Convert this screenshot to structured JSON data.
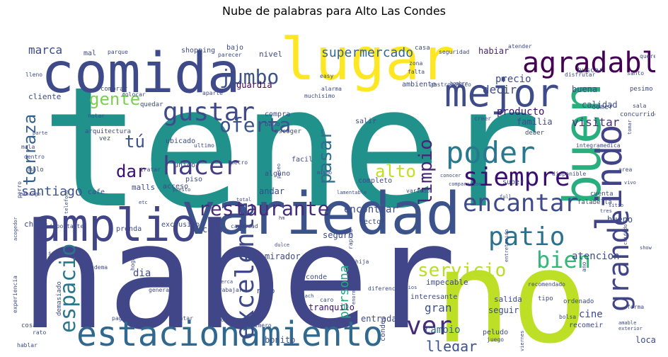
{
  "chart_data": {
    "type": "wordcloud",
    "title": "Nube de palabras para Alto Las Condes",
    "colormap": "viridis",
    "background": "#ffffff",
    "words": [
      {
        "text": "tener",
        "weight": 1.0,
        "color": "#21918c"
      },
      {
        "text": "haber",
        "weight": 0.92,
        "color": "#404688"
      },
      {
        "text": "no",
        "weight": 0.85,
        "color": "#bddf26"
      },
      {
        "text": "lugar",
        "weight": 0.62,
        "color": "#fde725"
      },
      {
        "text": "variedad",
        "weight": 0.6,
        "color": "#3b528b"
      },
      {
        "text": "comida",
        "weight": 0.56,
        "color": "#3e4a89"
      },
      {
        "text": "buen",
        "weight": 0.55,
        "color": "#29af7f"
      },
      {
        "text": "amplio",
        "weight": 0.48,
        "color": "#414487"
      },
      {
        "text": "estacionamiento",
        "weight": 0.46,
        "color": "#31688e"
      },
      {
        "text": "mejor",
        "weight": 0.4,
        "color": "#3e4c8a"
      },
      {
        "text": "lindo",
        "weight": 0.38,
        "color": "#404387"
      },
      {
        "text": "agradable",
        "weight": 0.32,
        "color": "#440154"
      },
      {
        "text": "poder",
        "weight": 0.3,
        "color": "#2a788e"
      },
      {
        "text": "grande",
        "weight": 0.3,
        "color": "#414487"
      },
      {
        "text": "excelente",
        "weight": 0.29,
        "color": "#3e4989"
      },
      {
        "text": "patio",
        "weight": 0.29,
        "color": "#2c728e"
      },
      {
        "text": "siempre",
        "weight": 0.28,
        "color": "#3b0f70"
      },
      {
        "text": "hacer",
        "weight": 0.27,
        "color": "#433e85"
      },
      {
        "text": "gustar",
        "weight": 0.26,
        "color": "#3e4a89"
      },
      {
        "text": "ver",
        "weight": 0.26,
        "color": "#472c7a"
      },
      {
        "text": "encantar",
        "weight": 0.25,
        "color": "#3e4a89"
      },
      {
        "text": "restaurante",
        "weight": 0.24,
        "color": "#472c7a"
      },
      {
        "text": "bien",
        "weight": 0.24,
        "color": "#35b779"
      },
      {
        "text": "espacio",
        "weight": 0.24,
        "color": "#2a768e"
      },
      {
        "text": "oferta",
        "weight": 0.23,
        "color": "#3b528b"
      },
      {
        "text": "jumbo",
        "weight": 0.22,
        "color": "#3b528b"
      },
      {
        "text": "gente",
        "weight": 0.21,
        "color": "#7ad151"
      },
      {
        "text": "pasar",
        "weight": 0.21,
        "color": "#2e6f8e"
      },
      {
        "text": "limpio",
        "weight": 0.21,
        "color": "#482677"
      },
      {
        "text": "terraza",
        "weight": 0.21,
        "color": "#355f8d"
      },
      {
        "text": "alto",
        "weight": 0.2,
        "color": "#c2df23"
      },
      {
        "text": "servicio",
        "weight": 0.2,
        "color": "#b8de29"
      },
      {
        "text": "dar",
        "weight": 0.19,
        "color": "#3b0f70"
      },
      {
        "text": "tú",
        "weight": 0.18,
        "color": "#3b528b"
      },
      {
        "text": "llegar",
        "weight": 0.16,
        "color": "#3b528b"
      },
      {
        "text": "supermercado",
        "weight": 0.14,
        "color": "#31688e"
      },
      {
        "text": "persona",
        "weight": 0.14,
        "color": "#22a884"
      },
      {
        "text": "santiago",
        "weight": 0.12,
        "color": "#3b528b"
      },
      {
        "text": "visitar",
        "weight": 0.12,
        "color": "#472c7a"
      },
      {
        "text": "decir",
        "weight": 0.12,
        "color": "#3e4a89"
      },
      {
        "text": "cine",
        "weight": 0.11,
        "color": "#3e4a89"
      },
      {
        "text": "atencion",
        "weight": 0.11,
        "color": "#3e4989"
      },
      {
        "text": "gran",
        "weight": 0.11,
        "color": "#3b528b"
      },
      {
        "text": "marca",
        "weight": 0.1,
        "color": "#3e4a89"
      },
      {
        "text": "habiar",
        "weight": 0.1,
        "color": "#482777"
      },
      {
        "text": "buena",
        "weight": 0.1,
        "color": "#3e4a89"
      },
      {
        "text": "precio",
        "weight": 0.1,
        "color": "#3e4a89"
      },
      {
        "text": "cambio",
        "weight": 0.1,
        "color": "#31688e"
      },
      {
        "text": "encontrar",
        "weight": 0.1,
        "color": "#3e4a89"
      },
      {
        "text": "tranquilo",
        "weight": 0.1,
        "color": "#3b0f70"
      },
      {
        "text": "guardia",
        "weight": 0.09,
        "color": "#440154"
      },
      {
        "text": "producto",
        "weight": 0.09,
        "color": "#3b0f70"
      },
      {
        "text": "calidad",
        "weight": 0.09,
        "color": "#3b528b"
      },
      {
        "text": "mirador",
        "weight": 0.09,
        "color": "#3e4a89"
      },
      {
        "text": "bonito",
        "weight": 0.09,
        "color": "#3b528b"
      },
      {
        "text": "seguir",
        "weight": 0.09,
        "color": "#3e4a89"
      },
      {
        "text": "familia",
        "weight": 0.09,
        "color": "#3e4a89"
      },
      {
        "text": "bueno",
        "weight": 0.09,
        "color": "#3e4a89"
      },
      {
        "text": "local",
        "weight": 0.09,
        "color": "#3e4a89"
      },
      {
        "text": "entrada",
        "weight": 0.09,
        "color": "#3e4a89"
      },
      {
        "text": "caja",
        "weight": 0.09,
        "color": "#3e4a89"
      },
      {
        "text": "seguro",
        "weight": 0.09,
        "color": "#3e4a89"
      },
      {
        "text": "andar",
        "weight": 0.09,
        "color": "#3e4a89"
      },
      {
        "text": "dia",
        "weight": 0.09,
        "color": "#3e4a89"
      },
      {
        "text": "nivel",
        "weight": 0.08,
        "color": "#3e4a89"
      },
      {
        "text": "bajo",
        "weight": 0.08,
        "color": "#3e4a89"
      },
      {
        "text": "mal",
        "weight": 0.08,
        "color": "#3e4a89"
      },
      {
        "text": "shopping",
        "weight": 0.08,
        "color": "#3e4a89"
      },
      {
        "text": "cliente",
        "weight": 0.08,
        "color": "#3e4a89"
      },
      {
        "text": "chile",
        "weight": 0.08,
        "color": "#3e4a89"
      },
      {
        "text": "malls",
        "weight": 0.08,
        "color": "#3e4a89"
      },
      {
        "text": "salida",
        "weight": 0.08,
        "color": "#3e4a89"
      },
      {
        "text": "rico",
        "weight": 0.08,
        "color": "#3e4a89"
      },
      {
        "text": "conde",
        "weight": 0.08,
        "color": "#3e4a89"
      },
      {
        "text": "condes",
        "weight": 0.08,
        "color": "#3e4a89"
      },
      {
        "text": "nino",
        "weight": 0.08,
        "color": "#3e4a89"
      },
      {
        "text": "impecable",
        "weight": 0.08,
        "color": "#3e4a89"
      },
      {
        "text": "interesante",
        "weight": 0.08,
        "color": "#3e4a89"
      },
      {
        "text": "recomeir",
        "weight": 0.08,
        "color": "#3e4a89"
      },
      {
        "text": "comer",
        "weight": 0.08,
        "color": "#3e4a89"
      },
      {
        "text": "sector",
        "weight": 0.08,
        "color": "#3e4a89"
      },
      {
        "text": "super",
        "weight": 0.08,
        "color": "#3e4a89"
      },
      {
        "text": "completo",
        "weight": 0.08,
        "color": "#3e4a89"
      },
      {
        "text": "alguno",
        "weight": 0.08,
        "color": "#3e4a89"
      },
      {
        "text": "unico",
        "weight": 0.08,
        "color": "#3e4a89"
      },
      {
        "text": "piso",
        "weight": 0.08,
        "color": "#3e4a89"
      },
      {
        "text": "ubicado",
        "weight": 0.08,
        "color": "#3e4a89"
      },
      {
        "text": "facil",
        "weight": 0.08,
        "color": "#3e4a89"
      },
      {
        "text": "compra",
        "weight": 0.08,
        "color": "#3e4a89"
      },
      {
        "text": "bano",
        "weight": 0.08,
        "color": "#3e4a89"
      },
      {
        "text": "escoger",
        "weight": 0.08,
        "color": "#3e4a89"
      },
      {
        "text": "salir",
        "weight": 0.08,
        "color": "#3e4a89"
      },
      {
        "text": "acceso",
        "weight": 0.08,
        "color": "#3e4a89"
      },
      {
        "text": "cafe",
        "weight": 0.08,
        "color": "#3e4a89"
      },
      {
        "text": "exclusivo",
        "weight": 0.08,
        "color": "#3e4a89"
      },
      {
        "text": "prenda",
        "weight": 0.08,
        "color": "#3e4a89"
      },
      {
        "text": "ambiente",
        "weight": 0.07,
        "color": "#3e4a89"
      },
      {
        "text": "casa",
        "weight": 0.07,
        "color": "#3e4a89"
      },
      {
        "text": "seguridad",
        "weight": 0.07,
        "color": "#3e4a89"
      },
      {
        "text": "atender",
        "weight": 0.07,
        "color": "#3e4a89"
      },
      {
        "text": "querer",
        "weight": 0.07,
        "color": "#3e4a89"
      },
      {
        "text": "buscar",
        "weight": 0.07,
        "color": "#3e4a89"
      },
      {
        "text": "santo",
        "weight": 0.07,
        "color": "#3e4a89"
      },
      {
        "text": "disfrutar",
        "weight": 0.07,
        "color": "#3e4a89"
      },
      {
        "text": "hombre",
        "weight": 0.07,
        "color": "#3e4a89"
      },
      {
        "text": "zona",
        "weight": 0.07,
        "color": "#3e4a89"
      },
      {
        "text": "falta",
        "weight": 0.07,
        "color": "#3e4a89"
      },
      {
        "text": "parecer",
        "weight": 0.07,
        "color": "#3e4a89"
      },
      {
        "text": "parque",
        "weight": 0.07,
        "color": "#3e4a89"
      },
      {
        "text": "lleno",
        "weight": 0.07,
        "color": "#3e4a89"
      },
      {
        "text": "easy",
        "weight": 0.07,
        "color": "#3e4a89"
      },
      {
        "text": "alarma",
        "weight": 0.07,
        "color": "#3e4a89"
      },
      {
        "text": "muchisimo",
        "weight": 0.07,
        "color": "#3e4a89"
      },
      {
        "text": "gastronomico",
        "weight": 0.07,
        "color": "#3e4a89"
      },
      {
        "text": "aparte",
        "weight": 0.07,
        "color": "#3e4a89"
      },
      {
        "text": "comprar",
        "weight": 0.07,
        "color": "#3e4a89"
      },
      {
        "text": "colocar",
        "weight": 0.07,
        "color": "#3e4a89"
      },
      {
        "text": "quedar",
        "weight": 0.07,
        "color": "#3e4a89"
      },
      {
        "text": "notar",
        "weight": 0.07,
        "color": "#3e4a89"
      },
      {
        "text": "arquitectura",
        "weight": 0.07,
        "color": "#3e4a89"
      },
      {
        "text": "vez",
        "weight": 0.07,
        "color": "#3e4a89"
      },
      {
        "text": "ultimo",
        "weight": 0.07,
        "color": "#3e4a89"
      },
      {
        "text": "pesimo",
        "weight": 0.07,
        "color": "#3e4a89"
      },
      {
        "text": "concurrido",
        "weight": 0.07,
        "color": "#3e4a89"
      },
      {
        "text": "sala",
        "weight": 0.07,
        "color": "#3e4a89"
      },
      {
        "text": "creer",
        "weight": 0.07,
        "color": "#3e4a89"
      },
      {
        "text": "deber",
        "weight": 0.07,
        "color": "#3e4a89"
      },
      {
        "text": "tomar",
        "weight": 0.07,
        "color": "#3e4a89"
      },
      {
        "text": "integramedica",
        "weight": 0.07,
        "color": "#3e4a89"
      },
      {
        "text": "area",
        "weight": 0.07,
        "color": "#3e4a89"
      },
      {
        "text": "vivo",
        "weight": 0.07,
        "color": "#3e4a89"
      },
      {
        "text": "conocer",
        "weight": 0.07,
        "color": "#3e4a89"
      },
      {
        "text": "comparacion",
        "weight": 0.07,
        "color": "#3e4a89"
      },
      {
        "text": "disponible",
        "weight": 0.07,
        "color": "#3e4a89"
      },
      {
        "text": "falabella",
        "weight": 0.07,
        "color": "#3e4a89"
      },
      {
        "text": "cuenta",
        "weight": 0.07,
        "color": "#3e4a89"
      },
      {
        "text": "tres",
        "weight": 0.07,
        "color": "#3e4a89"
      },
      {
        "text": "sitio",
        "weight": 0.07,
        "color": "#3e4a89"
      },
      {
        "text": "parte",
        "weight": 0.07,
        "color": "#3e4a89"
      },
      {
        "text": "mala",
        "weight": 0.07,
        "color": "#3e4a89"
      },
      {
        "text": "dentro",
        "weight": 0.07,
        "color": "#3e4a89"
      },
      {
        "text": "malo",
        "weight": 0.07,
        "color": "#3e4a89"
      },
      {
        "text": "perro",
        "weight": 0.07,
        "color": "#3e4a89"
      },
      {
        "text": "embargo",
        "weight": 0.07,
        "color": "#3e4a89"
      },
      {
        "text": "tratar",
        "weight": 0.07,
        "color": "#3e4a89"
      },
      {
        "text": "metro",
        "weight": 0.07,
        "color": "#3e4a89"
      },
      {
        "text": "paseo",
        "weight": 0.07,
        "color": "#3e4a89"
      },
      {
        "text": "mismo",
        "weight": 0.07,
        "color": "#3e4a89"
      },
      {
        "text": "puesto",
        "weight": 0.07,
        "color": "#3e4a89"
      },
      {
        "text": "lamentable",
        "weight": 0.07,
        "color": "#3e4a89"
      },
      {
        "text": "variado",
        "weight": 0.07,
        "color": "#3e4a89"
      },
      {
        "text": "full",
        "weight": 0.07,
        "color": "#3e4a89"
      },
      {
        "text": "total",
        "weight": 0.07,
        "color": "#3e4a89"
      },
      {
        "text": "etc",
        "weight": 0.07,
        "color": "#3e4a89"
      },
      {
        "text": "telefono",
        "weight": 0.07,
        "color": "#3e4a89"
      },
      {
        "text": "acogedor",
        "weight": 0.07,
        "color": "#3e4a89"
      },
      {
        "text": "importante",
        "weight": 0.07,
        "color": "#3e4a89"
      },
      {
        "text": "cantidad",
        "weight": 0.07,
        "color": "#3e4a89"
      },
      {
        "text": "hm",
        "weight": 0.07,
        "color": "#3e4a89"
      },
      {
        "text": "rapido",
        "weight": 0.07,
        "color": "#3e4a89"
      },
      {
        "text": "cuidado",
        "weight": 0.07,
        "color": "#3e4a89"
      },
      {
        "text": "show",
        "weight": 0.07,
        "color": "#3e4a89"
      },
      {
        "text": "sacar",
        "weight": 0.07,
        "color": "#3e4a89"
      },
      {
        "text": "hogar",
        "weight": 0.07,
        "color": "#3e4a89"
      },
      {
        "text": "amiga",
        "weight": 0.07,
        "color": "#3e4a89"
      },
      {
        "text": "dulce",
        "weight": 0.07,
        "color": "#3e4a89"
      },
      {
        "text": "hija",
        "weight": 0.07,
        "color": "#3e4a89"
      },
      {
        "text": "opción",
        "weight": 0.07,
        "color": "#3e4a89"
      },
      {
        "text": "entretenido",
        "weight": 0.07,
        "color": "#3e4a89"
      },
      {
        "text": "ano",
        "weight": 0.07,
        "color": "#3e4a89"
      },
      {
        "text": "experiencia",
        "weight": 0.07,
        "color": "#3e4a89"
      },
      {
        "text": "adema",
        "weight": 0.07,
        "color": "#3e4a89"
      },
      {
        "text": "feo",
        "weight": 0.07,
        "color": "#3e4a89"
      },
      {
        "text": "recorrer",
        "weight": 0.07,
        "color": "#3e4a89"
      },
      {
        "text": "generar",
        "weight": 0.07,
        "color": "#3e4a89"
      },
      {
        "text": "cerca",
        "weight": 0.07,
        "color": "#3e4a89"
      },
      {
        "text": "trabajar",
        "weight": 0.07,
        "color": "#3e4a89"
      },
      {
        "text": "monach",
        "weight": 0.07,
        "color": "#3e4a89"
      },
      {
        "text": "varios",
        "weight": 0.07,
        "color": "#3e4a89"
      },
      {
        "text": "recomendado",
        "weight": 0.07,
        "color": "#3e4a89"
      },
      {
        "text": "ordenado",
        "weight": 0.07,
        "color": "#3e4a89"
      },
      {
        "text": "tipo",
        "weight": 0.07,
        "color": "#3e4a89"
      },
      {
        "text": "diferencia",
        "weight": 0.07,
        "color": "#3e4a89"
      },
      {
        "text": "enorme",
        "weight": 0.07,
        "color": "#3e4a89"
      },
      {
        "text": "primero",
        "weight": 0.07,
        "color": "#3e4a89"
      },
      {
        "text": "demasiado",
        "weight": 0.07,
        "color": "#3e4a89"
      },
      {
        "text": "caro",
        "weight": 0.07,
        "color": "#3e4a89"
      },
      {
        "text": "pagar",
        "weight": 0.07,
        "color": "#3e4a89"
      },
      {
        "text": "contar",
        "weight": 0.07,
        "color": "#3e4a89"
      },
      {
        "text": "ofrecer",
        "weight": 0.07,
        "color": "#3e4a89"
      },
      {
        "text": "cosa",
        "weight": 0.07,
        "color": "#3e4a89"
      },
      {
        "text": "rato",
        "weight": 0.07,
        "color": "#3e4a89"
      },
      {
        "text": "hablar",
        "weight": 0.07,
        "color": "#3e4a89"
      },
      {
        "text": "peludo",
        "weight": 0.07,
        "color": "#3e4a89"
      },
      {
        "text": "juego",
        "weight": 0.07,
        "color": "#3e4a89"
      },
      {
        "text": "viernes",
        "weight": 0.07,
        "color": "#3e4a89"
      },
      {
        "text": "bolsa",
        "weight": 0.07,
        "color": "#3e4a89"
      },
      {
        "text": "forma",
        "weight": 0.07,
        "color": "#3e4a89"
      },
      {
        "text": "amable",
        "weight": 0.07,
        "color": "#3e4a89"
      },
      {
        "text": "exterior",
        "weight": 0.07,
        "color": "#3e4a89"
      }
    ]
  }
}
